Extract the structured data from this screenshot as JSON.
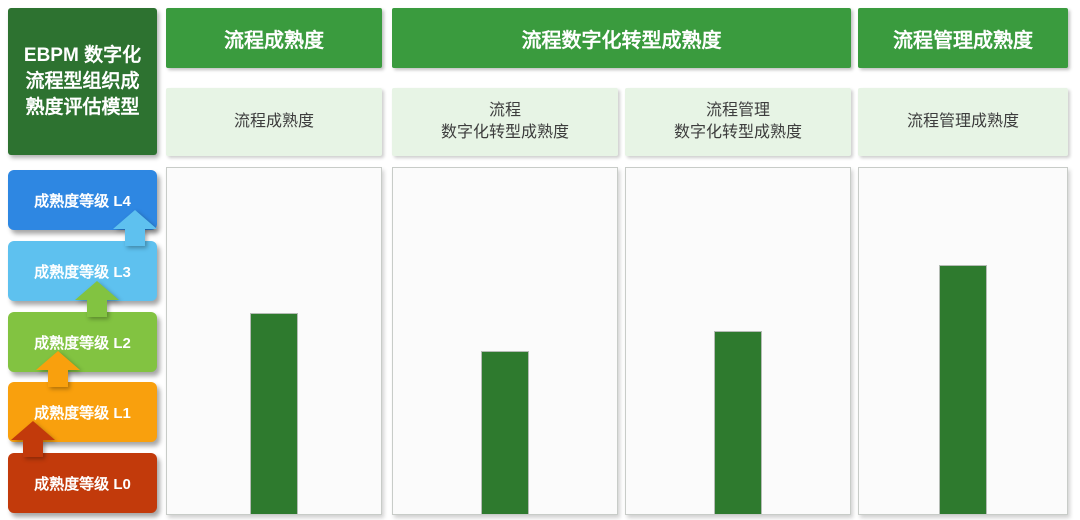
{
  "model_panel": {
    "title": "EBPM 数字化流程型组织成熟度评估模型",
    "title_lines": [
      "EBPM 数字化",
      "流程型组织成",
      "熟度评估模型"
    ],
    "title_bg": "#2d7230",
    "levels": [
      {
        "label": "成熟度等级 L4",
        "color": "#2e87e2"
      },
      {
        "label": "成熟度等级 L3",
        "color": "#5ec1ef"
      },
      {
        "label": "成熟度等级 L2",
        "color": "#82c341"
      },
      {
        "label": "成熟度等级 L1",
        "color": "#f9a00d"
      },
      {
        "label": "成熟度等级 L0",
        "color": "#c23a0b"
      }
    ],
    "arrows": [
      {
        "name": "l0-to-l1",
        "color": "#c23a0b"
      },
      {
        "name": "l1-to-l2",
        "color": "#f9a00d"
      },
      {
        "name": "l2-to-l3",
        "color": "#82c341"
      },
      {
        "name": "l3-to-l4",
        "color": "#5ec1ef"
      }
    ]
  },
  "headers": [
    {
      "label": "流程成熟度"
    },
    {
      "label": "流程数字化转型成熟度"
    },
    {
      "label": "流程管理成熟度"
    }
  ],
  "subheaders": [
    {
      "lines": [
        "流程成熟度"
      ]
    },
    {
      "lines": [
        "流程",
        "数字化转型成熟度"
      ]
    },
    {
      "lines": [
        "流程管理",
        "数字化转型成熟度"
      ]
    },
    {
      "lines": [
        "流程管理成熟度"
      ]
    }
  ],
  "colors": {
    "column_header_bg": "#3a9b3e",
    "subheader_bg": "#e7f4e5",
    "panel_bg": "#fbfbfb",
    "bar_color": "#2e7a2e"
  },
  "chart_data": {
    "type": "bar",
    "categories": [
      "流程成熟度",
      "流程 数字化转型成熟度",
      "流程管理 数字化转型成熟度",
      "流程管理成熟度"
    ],
    "values": [
      58,
      47,
      53,
      72
    ],
    "series_note": "single dark-green bar per panel; values estimated as percent of panel height (no axes, ticks or data labels shown)",
    "title": "EBPM 数字化流程型组织成熟度评估模型",
    "xlabel": "",
    "ylabel": "",
    "ylim": [
      0,
      100
    ],
    "grid": false,
    "legend": false,
    "bar_color": "#2e7a2e"
  }
}
